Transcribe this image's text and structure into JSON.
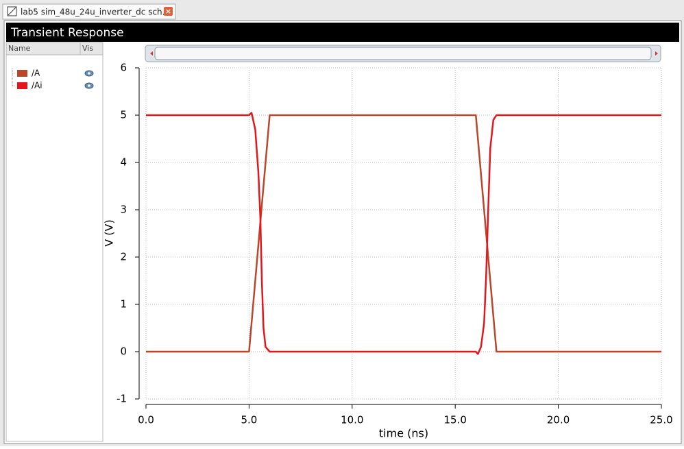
{
  "tab": {
    "title": "lab5 sim_48u_24u_inverter_dc sch..."
  },
  "panel": {
    "title": "Transient Response",
    "columns": [
      "Name",
      "Vis"
    ]
  },
  "chart_data": {
    "type": "line",
    "xlabel": "time (ns)",
    "ylabel": "V (V)",
    "series": [
      {
        "name": "/A",
        "color": "#b9472b",
        "x": [
          0,
          5,
          6,
          16,
          17,
          25
        ],
        "values": [
          0,
          0,
          5,
          5,
          0,
          0
        ]
      },
      {
        "name": "/Ai",
        "color": "#e3161c",
        "x": [
          0,
          5.0,
          5.12,
          5.3,
          5.45,
          5.55,
          5.62,
          5.7,
          5.8,
          6.0,
          16.0,
          16.1,
          16.25,
          16.4,
          16.5,
          16.6,
          16.7,
          16.85,
          17.0,
          25
        ],
        "values": [
          5,
          5,
          5.05,
          4.7,
          3.8,
          2.8,
          1.5,
          0.5,
          0.1,
          0,
          0,
          -0.05,
          0.1,
          0.6,
          1.6,
          3.0,
          4.3,
          4.9,
          5,
          5
        ]
      }
    ],
    "xlim": [
      0,
      25
    ],
    "ylim": [
      -1,
      6
    ],
    "xticks": [
      {
        "value": 0,
        "label": "0.0"
      },
      {
        "value": 5,
        "label": "5.0"
      },
      {
        "value": 10,
        "label": "10.0"
      },
      {
        "value": 15,
        "label": "15.0"
      },
      {
        "value": 20,
        "label": "20.0"
      },
      {
        "value": 25,
        "label": "25.0"
      }
    ],
    "yticks": [
      -1,
      0,
      1,
      2,
      3,
      4,
      5,
      6
    ],
    "grid": true
  }
}
